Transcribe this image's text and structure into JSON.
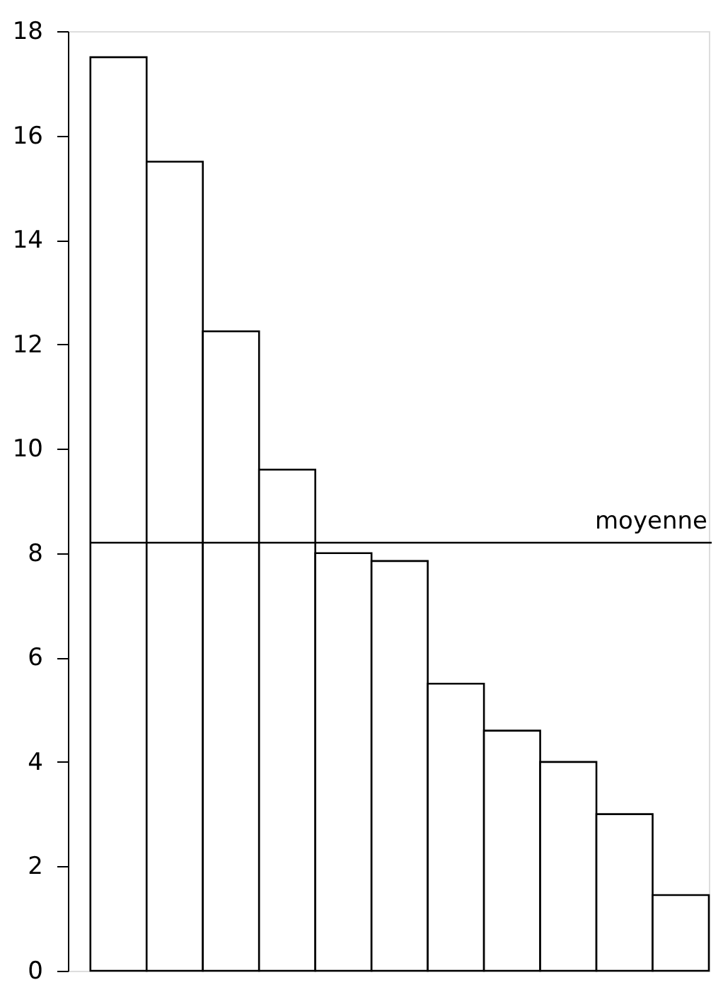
{
  "chart_data": {
    "type": "bar",
    "categories": [
      null,
      null,
      null,
      null,
      null,
      null,
      null,
      null,
      null,
      null,
      null
    ],
    "values": [
      17.5,
      15.5,
      12.25,
      9.6,
      8.0,
      7.85,
      5.5,
      4.6,
      4.0,
      3.0,
      1.45
    ],
    "color": "#ffffff",
    "ylim": [
      0,
      18
    ],
    "yticks": [
      0,
      2,
      4,
      6,
      8,
      10,
      12,
      14,
      16,
      18
    ],
    "grid": false,
    "tick_labels": "y",
    "ref_lines": [
      {
        "axis": "y",
        "value": 8.2,
        "label": "moyenne",
        "color": "#000000"
      }
    ]
  }
}
